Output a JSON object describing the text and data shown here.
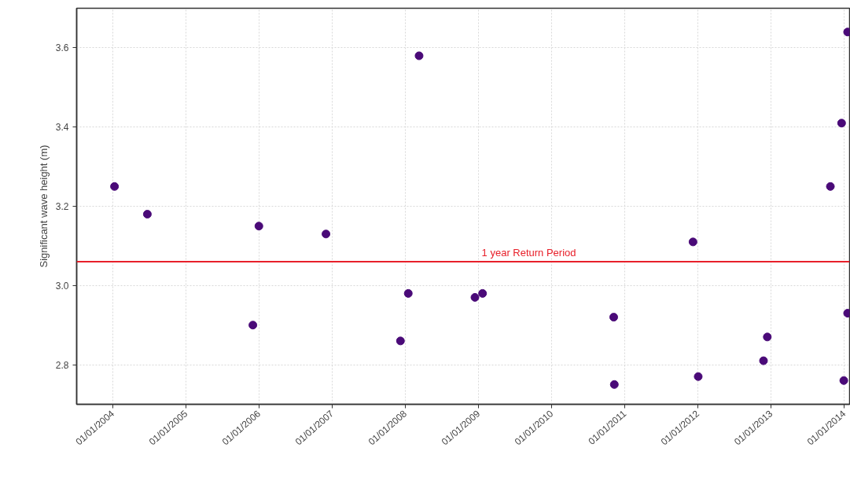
{
  "chart_data": {
    "type": "scatter",
    "ylabel": "Significant wave height (m)",
    "x": [
      "2004-01-10",
      "2004-06-22",
      "2005-12-01",
      "2005-12-31",
      "2006-12-01",
      "2007-12-08",
      "2008-01-16",
      "2008-03-10",
      "2008-12-14",
      "2009-01-21",
      "2010-11-07",
      "2010-11-10",
      "2011-12-08",
      "2012-01-03",
      "2012-11-24",
      "2012-12-13",
      "2013-10-24",
      "2013-12-19",
      "2013-12-30",
      "2014-01-18",
      "2014-01-18"
    ],
    "values": [
      3.25,
      3.18,
      2.9,
      3.15,
      3.13,
      2.86,
      2.98,
      3.58,
      2.97,
      2.98,
      2.92,
      2.75,
      3.11,
      2.77,
      2.81,
      2.87,
      3.25,
      3.41,
      2.76,
      3.64,
      2.93
    ],
    "color": "#4a0a78",
    "marker": "circle",
    "xlim": [
      "2003-07-05",
      "2014-01-28"
    ],
    "ylim": [
      2.7,
      3.7
    ],
    "xticks": [
      {
        "value": "2004-01-01",
        "label": "01/01/2004"
      },
      {
        "value": "2005-01-01",
        "label": "01/01/2005"
      },
      {
        "value": "2006-01-01",
        "label": "01/01/2006"
      },
      {
        "value": "2007-01-01",
        "label": "01/01/2007"
      },
      {
        "value": "2008-01-01",
        "label": "01/01/2008"
      },
      {
        "value": "2009-01-01",
        "label": "01/01/2009"
      },
      {
        "value": "2010-01-01",
        "label": "01/01/2010"
      },
      {
        "value": "2011-01-01",
        "label": "01/01/2011"
      },
      {
        "value": "2012-01-01",
        "label": "01/01/2012"
      },
      {
        "value": "2013-01-01",
        "label": "01/01/2013"
      },
      {
        "value": "2014-01-01",
        "label": "01/01/2014"
      }
    ],
    "yticks": [
      {
        "value": 2.8,
        "label": "2.8"
      },
      {
        "value": 3.0,
        "label": "3.0"
      },
      {
        "value": 3.2,
        "label": "3.2"
      },
      {
        "value": 3.4,
        "label": "3.4"
      },
      {
        "value": 3.6,
        "label": "3.6"
      }
    ],
    "grid": true,
    "ref_lines": [
      {
        "axis": "y",
        "value": 3.06,
        "label": "1 year Return Period",
        "color": "#e8202a"
      }
    ]
  }
}
